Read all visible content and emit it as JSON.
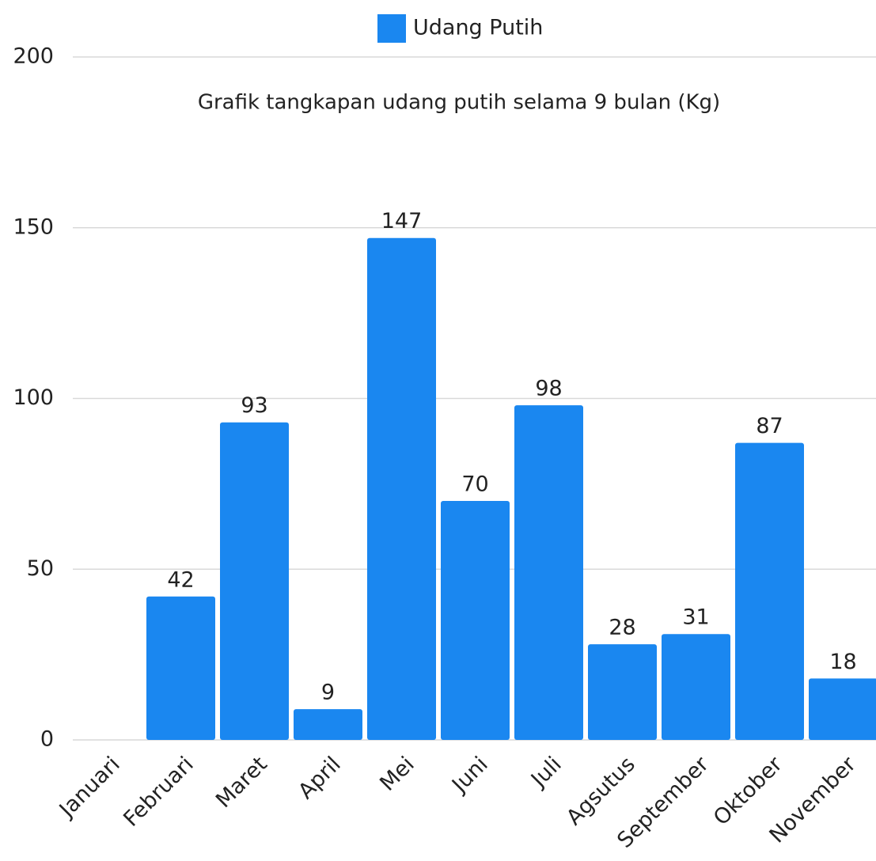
{
  "chart_data": {
    "type": "bar",
    "title": "Grafik tangkapan udang putih selama 9 bulan (Kg)",
    "categories": [
      "Januari",
      "Februari",
      "Maret",
      "April",
      "Mei",
      "Juni",
      "Juli",
      "Agsutus",
      "September",
      "Oktober",
      "November"
    ],
    "series": [
      {
        "name": "Udang Putih",
        "color": "#1a87f0",
        "values": [
          null,
          42,
          93,
          9,
          147,
          70,
          98,
          28,
          31,
          87,
          18
        ]
      }
    ],
    "ylim": [
      0,
      200
    ],
    "yticks": [
      0,
      50,
      100,
      150,
      200
    ],
    "grid": true
  }
}
